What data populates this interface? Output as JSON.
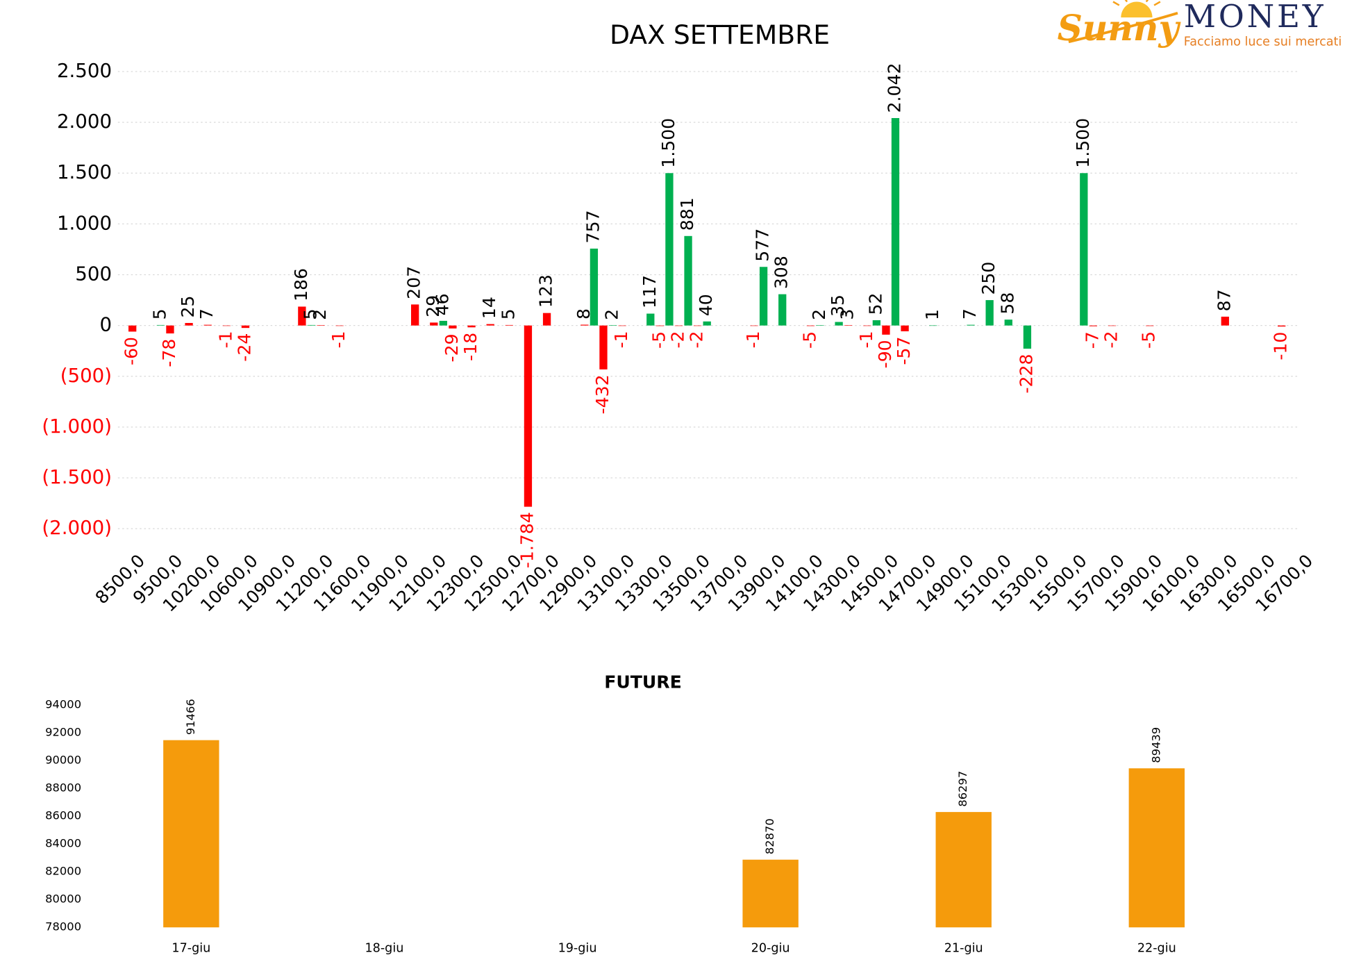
{
  "logo": {
    "brand": "Sunny",
    "name": "MONEY",
    "tagline": "Facciamo luce sui mercati"
  },
  "chart_data": [
    {
      "type": "bar",
      "title": "DAX SETTEMBRE",
      "categories": [
        "8500,0",
        null,
        "9500,0",
        null,
        "10200,0",
        null,
        "10600,0",
        null,
        "10900,0",
        null,
        "11200,0",
        null,
        "11600,0",
        null,
        "11900,0",
        null,
        "12100,0",
        null,
        "12300,0",
        null,
        "12500,0",
        null,
        "12700,0",
        null,
        "12900,0",
        null,
        "13100,0",
        null,
        "13300,0",
        null,
        "13500,0",
        null,
        "13700,0",
        null,
        "13900,0",
        null,
        "14100,0",
        null,
        "14300,0",
        null,
        "14500,0",
        null,
        "14700,0",
        null,
        "14900,0",
        null,
        "15100,0",
        null,
        "15300,0",
        null,
        "15500,0",
        null,
        "15700,0",
        null,
        "15900,0",
        null,
        "16100,0",
        null,
        "16300,0",
        null,
        "16500,0",
        null,
        "16700,0"
      ],
      "series": [
        {
          "color": "#ff0000",
          "values": [
            -60,
            null,
            -78,
            25,
            7,
            -1,
            -24,
            null,
            null,
            186,
            2,
            -1,
            null,
            null,
            null,
            207,
            29,
            -29,
            -18,
            14,
            5,
            -1784,
            123,
            null,
            8,
            -432,
            -1,
            null,
            -5,
            -2,
            -2,
            null,
            null,
            -1,
            null,
            null,
            -5,
            null,
            3,
            -1,
            -90,
            -57,
            null,
            null,
            null,
            null,
            null,
            null,
            null,
            null,
            null,
            -7,
            -2,
            null,
            -5,
            null,
            null,
            null,
            87,
            null,
            null,
            -10,
            null
          ],
          "value_labels": [
            "-60",
            null,
            "-78",
            "25",
            "7",
            "-1",
            "-24",
            null,
            null,
            "186",
            "2",
            "-1",
            null,
            null,
            null,
            "207",
            "29",
            "-29",
            "-18",
            "14",
            "5",
            "-1.784",
            "123",
            null,
            "8",
            "-432",
            "-1",
            null,
            "-5",
            "-2",
            "-2",
            null,
            null,
            "-1",
            null,
            null,
            "-5",
            null,
            "3",
            "-1",
            "-90",
            "-57",
            null,
            null,
            null,
            null,
            null,
            null,
            null,
            null,
            null,
            "-7",
            "-2",
            null,
            "-5",
            null,
            null,
            null,
            "87",
            null,
            null,
            "-10",
            null
          ]
        },
        {
          "color": "#00b050",
          "values": [
            null,
            5,
            null,
            null,
            null,
            null,
            null,
            null,
            null,
            5,
            null,
            null,
            null,
            null,
            null,
            null,
            46,
            null,
            null,
            null,
            null,
            null,
            null,
            null,
            757,
            2,
            null,
            117,
            1500,
            881,
            40,
            null,
            null,
            577,
            308,
            null,
            2,
            35,
            null,
            52,
            2042,
            null,
            1,
            null,
            7,
            250,
            58,
            -228,
            null,
            null,
            1500,
            null,
            null,
            null,
            null,
            null,
            null,
            null,
            null,
            null,
            null,
            null,
            null
          ],
          "value_labels": [
            null,
            "5",
            null,
            null,
            null,
            null,
            null,
            null,
            null,
            "5",
            null,
            null,
            null,
            null,
            null,
            null,
            "46",
            null,
            null,
            null,
            null,
            null,
            null,
            null,
            "757",
            "2",
            null,
            "117",
            "1.500",
            "881",
            "40",
            null,
            null,
            "577",
            "308",
            null,
            "2",
            "35",
            null,
            "52",
            "2.042",
            null,
            "1",
            null,
            "7",
            "250",
            "58",
            "-228",
            null,
            null,
            "1.500",
            null,
            null,
            null,
            null,
            null,
            null,
            null,
            null,
            null,
            null,
            null,
            null
          ]
        }
      ],
      "ylim": [
        -2000,
        2500
      ],
      "yticks": [
        {
          "value": -2000,
          "label": "(2.000)"
        },
        {
          "value": -1500,
          "label": "(1.500)"
        },
        {
          "value": -1000,
          "label": "(1.000)"
        },
        {
          "value": -500,
          "label": "(500)"
        },
        0,
        500,
        {
          "value": 1000,
          "label": "1.000"
        },
        {
          "value": 1500,
          "label": "1.500"
        },
        {
          "value": 2000,
          "label": "2.000"
        },
        {
          "value": 2500,
          "label": "2.500"
        }
      ],
      "grid": true,
      "negative_label_color": "#ff0000"
    },
    {
      "type": "bar",
      "title": "FUTURE",
      "categories": [
        "17-giu",
        "18-giu",
        "19-giu",
        "20-giu",
        "21-giu",
        "22-giu"
      ],
      "values": [
        91466,
        null,
        null,
        82870,
        86297,
        89439
      ],
      "color": "#f59b0c",
      "ylim": [
        78000,
        94000
      ],
      "yticks": [
        78000,
        80000,
        82000,
        84000,
        86000,
        88000,
        90000,
        92000,
        94000
      ],
      "grid": false
    }
  ]
}
